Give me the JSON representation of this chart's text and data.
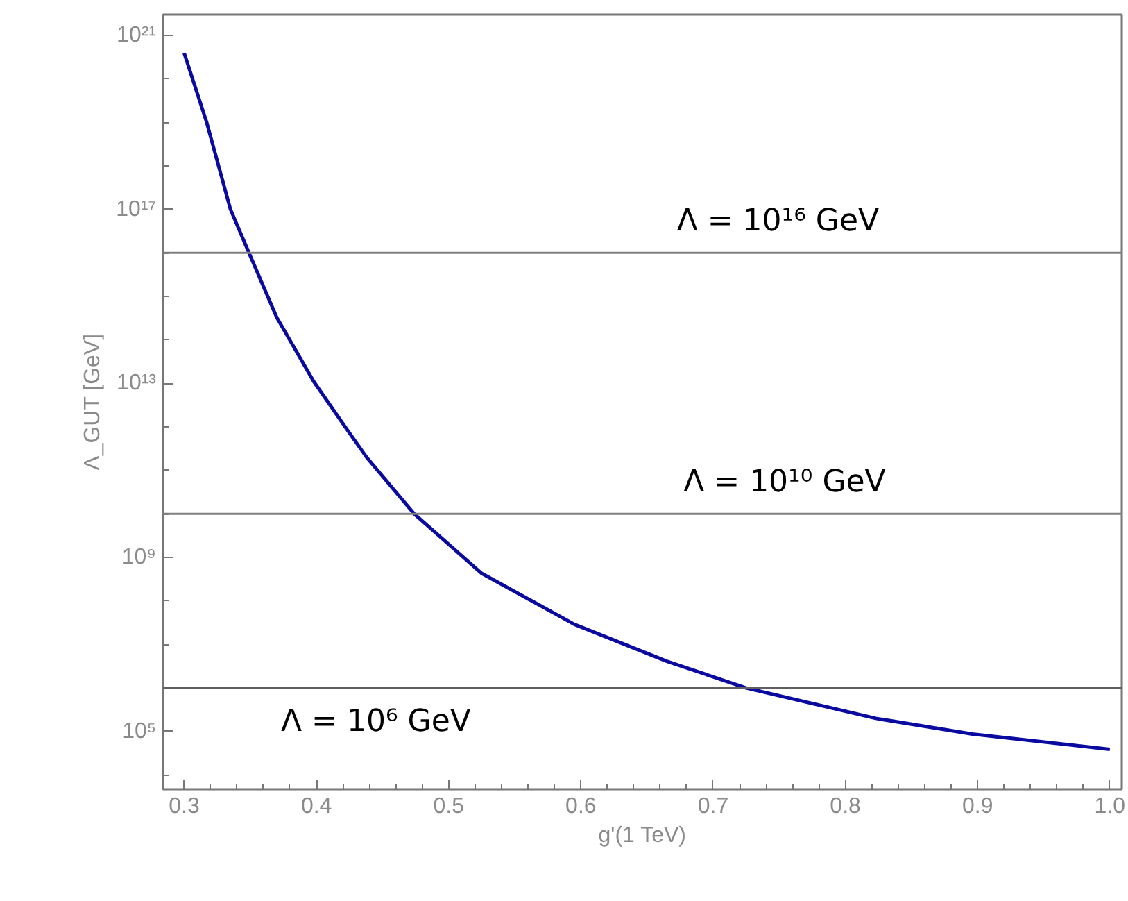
{
  "chart_data": {
    "type": "line",
    "xlabel": "g'(1 TeV)",
    "ylabel": "Λ_GUT [GeV]",
    "log": "y",
    "x": [
      0.3,
      0.317,
      0.335,
      0.349,
      0.37,
      0.398,
      0.424,
      0.438,
      0.474,
      0.525,
      0.595,
      0.665,
      0.725,
      0.823,
      0.896,
      1.0
    ],
    "series": [
      {
        "color": "#0a0aa0",
        "values": [
          3.9e+20,
          1e+19,
          1e+17,
          1e+16,
          330000000000000.0,
          11000000000000.0,
          800000000000.0,
          200000000000.0,
          10000000000.0,
          430000000.0,
          29000000.0,
          4100000.0,
          1000000.0,
          200000.0,
          87000.0,
          39000.0
        ]
      }
    ],
    "xlim": [
      0.284,
      1.009
    ],
    "ylim": [
      4700.0,
      3e+21
    ],
    "xticks": [
      0.3,
      0.4,
      0.5,
      0.6,
      0.7,
      0.8,
      0.9,
      {
        "value": 1.0,
        "label": "1.0"
      }
    ],
    "yticks": [
      {
        "value": 100000.0,
        "label": "10⁵"
      },
      {
        "value": 1000000000.0,
        "label": "10⁹"
      },
      {
        "value": 10000000000000.0,
        "label": "10¹³"
      },
      {
        "value": 1e+17,
        "label": "10¹⁷"
      },
      {
        "value": 1e+21,
        "label": "10²¹"
      }
    ],
    "ref_lines": [
      {
        "axis": "y",
        "value": 1e+16,
        "color": "#808080"
      },
      {
        "axis": "y",
        "value": 10000000000.0,
        "color": "#808080"
      },
      {
        "axis": "y",
        "value": 1000000.0,
        "color": "#606060"
      }
    ],
    "annotations": [
      {
        "text": "Λ = 10¹⁶ GeV",
        "x": 0.749,
        "y": 1e+16
      },
      {
        "text": "Λ = 10¹⁰ GeV",
        "x": 0.754,
        "y": 10000000000.0
      },
      {
        "text": "Λ = 10⁶ GeV",
        "x": 0.445,
        "y": 1000000.0
      }
    ],
    "grid": false,
    "line_style": "solid",
    "marker": "none"
  }
}
